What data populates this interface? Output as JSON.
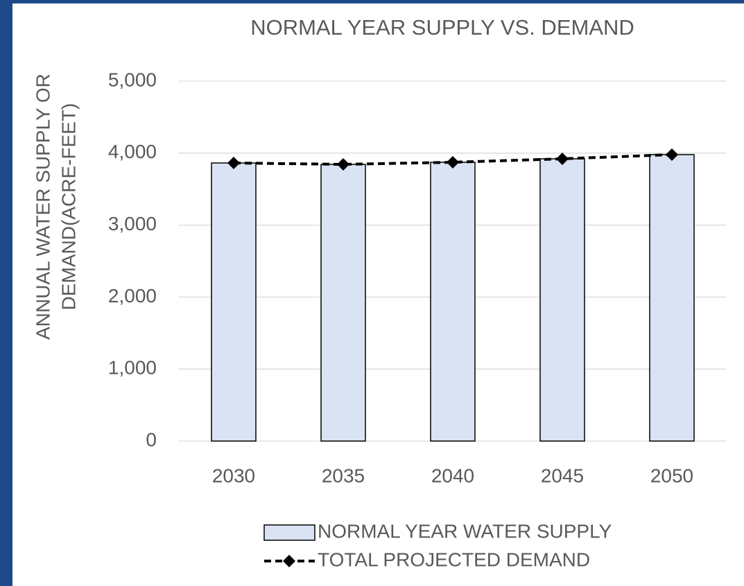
{
  "chart_data": {
    "type": "bar",
    "title": "NORMAL YEAR SUPPLY VS. DEMAND",
    "ylabel": [
      "ANNUAL WATER SUPPLY OR",
      "DEMAND(ACRE-FEET)"
    ],
    "categories": [
      "2030",
      "2035",
      "2040",
      "2045",
      "2050"
    ],
    "series": [
      {
        "name": "NORMAL YEAR WATER SUPPLY",
        "type": "bar",
        "color": "#dae3f3",
        "values": [
          3863,
          3844,
          3873,
          3921,
          3979
        ]
      },
      {
        "name": "TOTAL PROJECTED DEMAND",
        "type": "line",
        "color": "#000000",
        "values": [
          3863,
          3844,
          3873,
          3921,
          3979
        ]
      }
    ],
    "ylim": [
      0,
      5000
    ],
    "yticks": [
      0,
      {
        "value": 1000,
        "label": "1,000"
      },
      {
        "value": 2000,
        "label": "2,000"
      },
      {
        "value": 3000,
        "label": "3,000"
      },
      {
        "value": 4000,
        "label": "4,000"
      },
      {
        "value": 5000,
        "label": "5,000"
      }
    ],
    "grid": true,
    "legend": "bottom"
  }
}
